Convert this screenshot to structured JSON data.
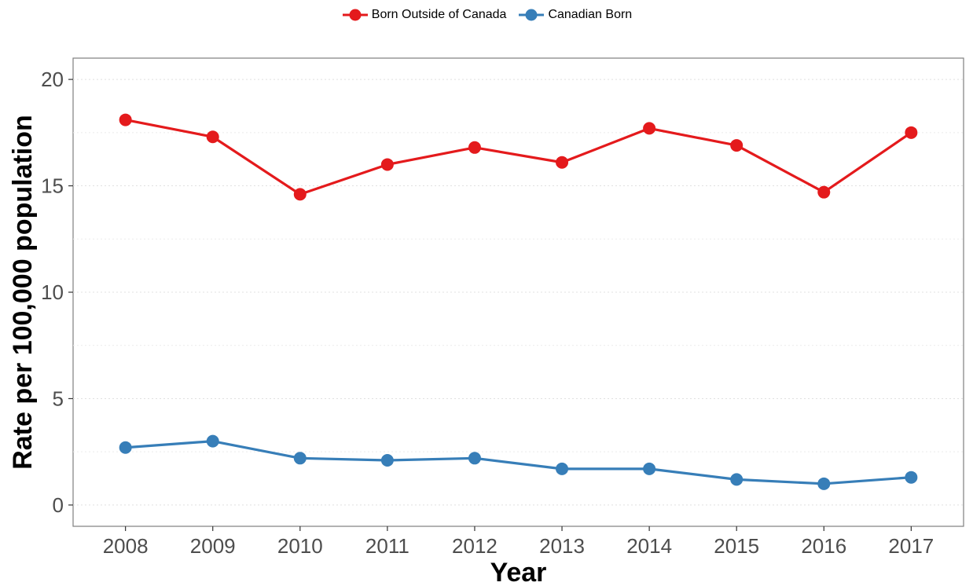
{
  "chart_data": {
    "type": "line",
    "title": "",
    "xlabel": "Year",
    "ylabel": "Rate per 100,000 population",
    "x": [
      "2008",
      "2009",
      "2010",
      "2011",
      "2012",
      "2013",
      "2014",
      "2015",
      "2016",
      "2017"
    ],
    "ylim": [
      -1,
      21
    ],
    "yticks": [
      0,
      5,
      10,
      15,
      20
    ],
    "grid": "dotted horizontal",
    "legend_position": "top-center",
    "series": [
      {
        "name": "Born Outside of Canada",
        "color": "#e41a1c",
        "values": [
          18.1,
          17.3,
          14.6,
          16.0,
          16.8,
          16.1,
          17.7,
          16.9,
          14.7,
          17.5
        ]
      },
      {
        "name": "Canadian Born",
        "color": "#377eb8",
        "values": [
          2.7,
          3.0,
          2.2,
          2.1,
          2.2,
          1.7,
          1.7,
          1.2,
          1.0,
          1.3
        ]
      }
    ]
  }
}
